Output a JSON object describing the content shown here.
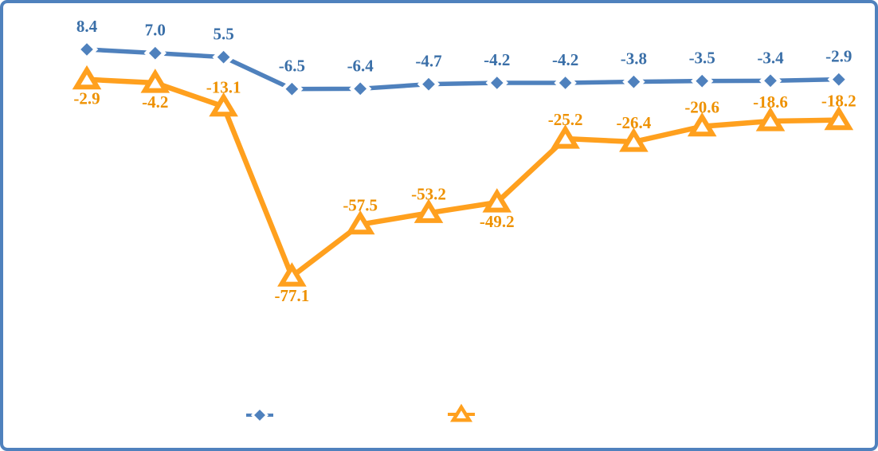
{
  "window": {
    "background_color": "#FFFFFF",
    "frame_border_color": "#4F81BD"
  },
  "chart_data": {
    "type": "line",
    "title": "",
    "points_per_series": 12,
    "categories": [],
    "axes_visible": false,
    "gridlines": false,
    "ylim": [
      -90,
      20
    ],
    "legend_position": "bottom",
    "series": [
      {
        "name": "blue-diamond-series",
        "marker": "diamond",
        "color": "#4F81BD",
        "label_color": "#3A6FA8",
        "values": [
          8.4,
          7.0,
          5.5,
          -6.5,
          -6.4,
          -4.7,
          -4.2,
          -4.2,
          -3.8,
          -3.5,
          -3.4,
          -2.9
        ],
        "labels": [
          "8.4",
          "7.0",
          "5.5",
          "-6.5",
          "-6.4",
          "-4.7",
          "-4.2",
          "-4.2",
          "-3.8",
          "-3.5",
          "-3.4",
          "-2.9"
        ],
        "label_side": [
          "above",
          "above",
          "above",
          "above",
          "above",
          "above",
          "above",
          "above",
          "above",
          "above",
          "above",
          "above"
        ]
      },
      {
        "name": "orange-triangle-series",
        "marker": "triangle",
        "color": "#FFA01E",
        "label_color": "#EE9100",
        "values": [
          -2.9,
          -4.2,
          -13.1,
          -77.1,
          -57.5,
          -53.2,
          -49.2,
          -25.2,
          -26.4,
          -20.6,
          -18.6,
          -18.2
        ],
        "labels": [
          "-2.9",
          "-4.2",
          "-13.1",
          "-77.1",
          "-57.5",
          "-53.2",
          "-49.2",
          "-25.2",
          "-26.4",
          "-20.6",
          "-18.6",
          "-18.2"
        ],
        "label_side": [
          "below",
          "below",
          "above",
          "below",
          "above",
          "above",
          "below",
          "above",
          "above",
          "above",
          "above",
          "above"
        ]
      }
    ],
    "legend": {
      "items": [
        {
          "marker": "diamond",
          "color": "#4F81BD",
          "label": ""
        },
        {
          "marker": "triangle",
          "color": "#FFA01E",
          "label": ""
        }
      ]
    }
  }
}
